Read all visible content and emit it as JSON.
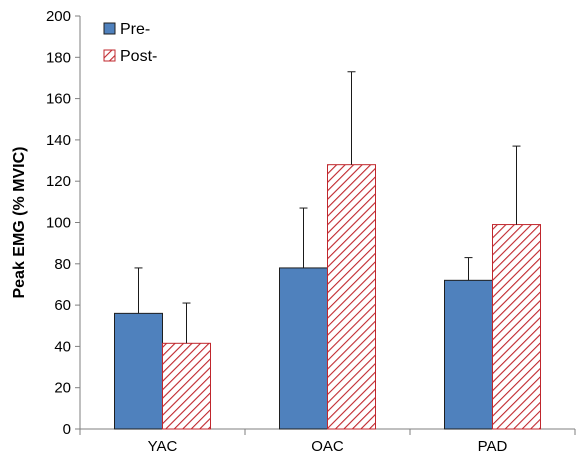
{
  "chart_data": {
    "type": "bar",
    "categories": [
      "YAC",
      "OAC",
      "PAD"
    ],
    "series": [
      {
        "name": "Pre-",
        "values": [
          56,
          78,
          72
        ],
        "error_upper": [
          78,
          107,
          83
        ],
        "pattern": "solid",
        "color": "#4f81bd",
        "stroke": "#1f1f1f"
      },
      {
        "name": "Post-",
        "values": [
          41.5,
          128,
          99
        ],
        "error_upper": [
          61,
          173,
          137
        ],
        "pattern": "diagonal-hatch",
        "color": "#c0272d",
        "stroke": "#c0272d"
      }
    ],
    "ylabel": "Peak EMG (% MVIC)",
    "xlabel": "",
    "title": "",
    "ylim": [
      0,
      200
    ],
    "yticks": [
      "0",
      "20",
      "40",
      "60",
      "80",
      "100",
      "120",
      "140",
      "160",
      "180",
      "200"
    ],
    "grid": false,
    "error_bars": "upper-only",
    "legend_position": "top-left"
  }
}
